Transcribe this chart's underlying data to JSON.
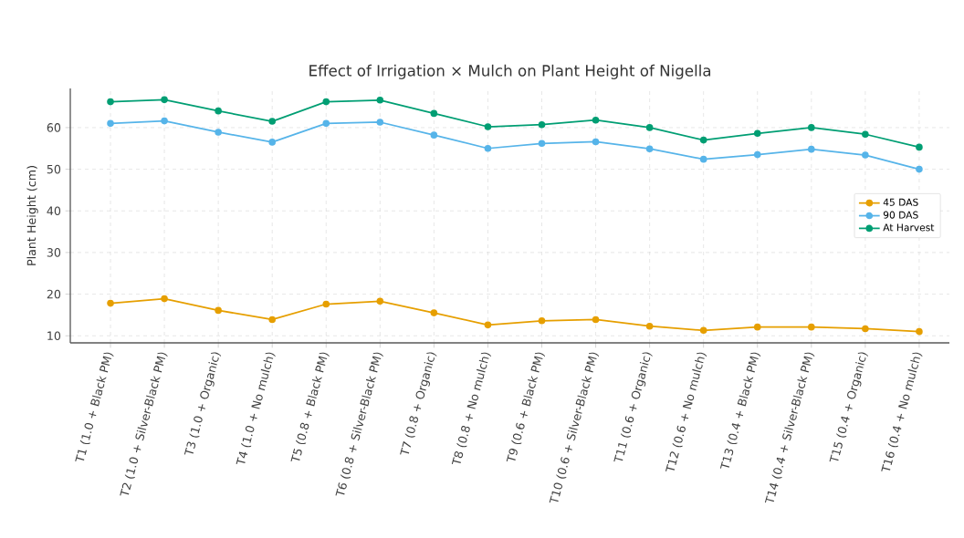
{
  "chart_data": {
    "type": "line",
    "title": "Effect of Irrigation × Mulch on Plant Height of Nigella",
    "ylabel": "Plant Height (cm)",
    "categories": [
      "T1 (1.0 + Black PM)",
      "T2 (1.0 + Silver-Black PM)",
      "T3 (1.0 + Organic)",
      "T4 (1.0 + No mulch)",
      "T5 (0.8 + Black PM)",
      "T6 (0.8 + Silver-Black PM)",
      "T7 (0.8 + Organic)",
      "T8 (0.8 + No mulch)",
      "T9 (0.6 + Black PM)",
      "T10 (0.6 + Silver-Black PM)",
      "T11 (0.6 + Organic)",
      "T12 (0.6 + No mulch)",
      "T13 (0.4 + Black PM)",
      "T14 (0.4 + Silver-Black PM)",
      "T15 (0.4 + Organic)",
      "T16 (0.4 + No mulch)"
    ],
    "series": [
      {
        "name": "45 DAS",
        "color": "#e69f00",
        "values": [
          17.8,
          18.9,
          16.1,
          13.9,
          17.6,
          18.3,
          15.5,
          12.6,
          13.6,
          13.9,
          12.3,
          11.3,
          12.1,
          12.1,
          11.7,
          11.0
        ]
      },
      {
        "name": "90 DAS",
        "color": "#56b4e9",
        "values": [
          61.0,
          61.6,
          58.9,
          56.5,
          61.0,
          61.3,
          58.2,
          55.0,
          56.2,
          56.6,
          54.9,
          52.4,
          53.5,
          54.8,
          53.4,
          50.0
        ]
      },
      {
        "name": "At Harvest",
        "color": "#009e73",
        "values": [
          66.2,
          66.7,
          64.0,
          61.5,
          66.2,
          66.6,
          63.4,
          60.2,
          60.7,
          61.8,
          60.0,
          57.0,
          58.6,
          60.0,
          58.4,
          55.3
        ]
      }
    ],
    "ylim": [
      8.3,
      69.4
    ],
    "yticks": [
      10,
      20,
      30,
      40,
      50,
      60
    ],
    "grid": true,
    "legend": "right",
    "marker": "circle",
    "line_style": "solid"
  }
}
